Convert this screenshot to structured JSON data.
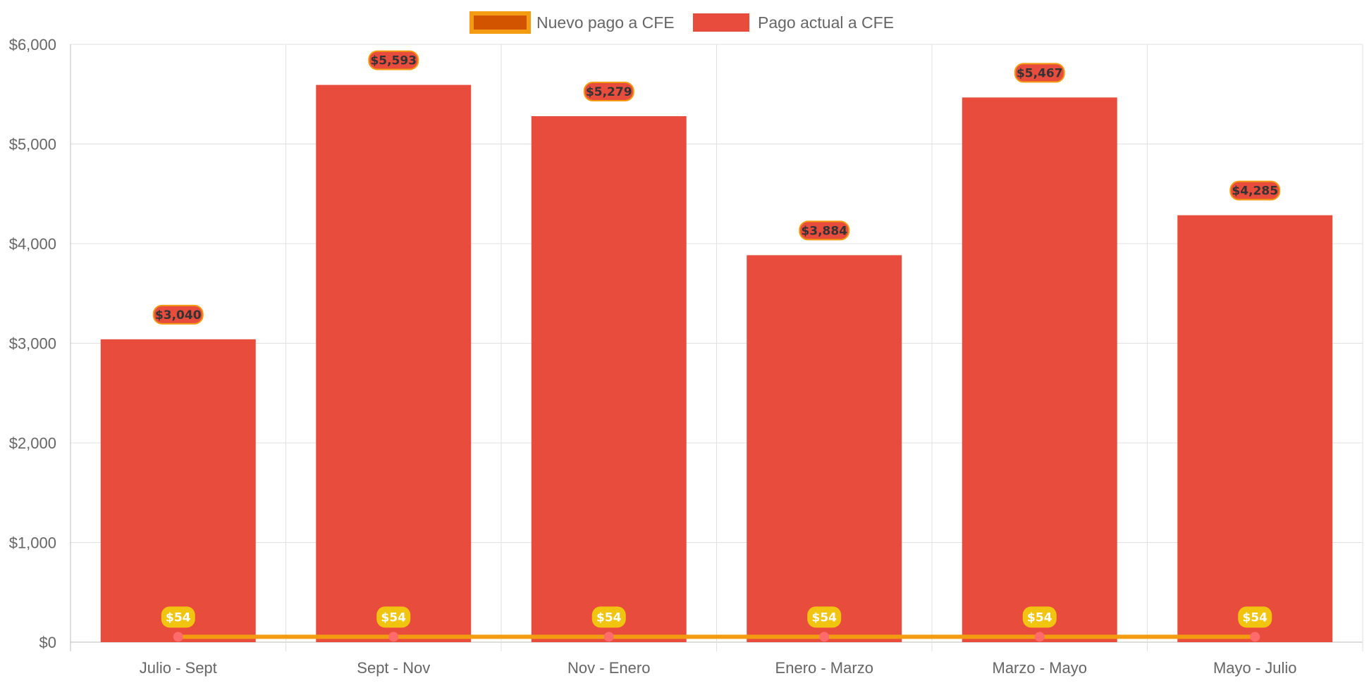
{
  "chart_data": {
    "type": "bar",
    "categories": [
      "Julio - Sept",
      "Sept - Nov",
      "Nov - Enero",
      "Enero - Marzo",
      "Marzo - Mayo",
      "Mayo - Julio"
    ],
    "series": [
      {
        "name": "Nuevo pago a CFE",
        "kind": "line",
        "color": "#f39c12",
        "point_color": "#ff6b6b",
        "values": [
          54,
          54,
          54,
          54,
          54,
          54
        ],
        "labels": [
          "$54",
          "$54",
          "$54",
          "$54",
          "$54",
          "$54"
        ],
        "label_background": "#f1c40f",
        "label_text_color": "#ffffff"
      },
      {
        "name": "Pago actual a CFE",
        "kind": "bar",
        "color": "#e74c3c",
        "values": [
          3040,
          5593,
          5279,
          3884,
          5467,
          4285
        ],
        "labels": [
          "$3,040",
          "$5,593",
          "$5,279",
          "$3,884",
          "$5,467",
          "$4,285"
        ],
        "label_background": "#e74c3c",
        "label_border": "#f39c12",
        "label_text_color": "#333333"
      }
    ],
    "y_ticks": [
      0,
      1000,
      2000,
      3000,
      4000,
      5000,
      6000
    ],
    "y_tick_labels": [
      "$0",
      "$1,000",
      "$2,000",
      "$3,000",
      "$4,000",
      "$5,000",
      "$6,000"
    ],
    "ylim": [
      0,
      6000
    ],
    "grid": true,
    "legend_position": "top-center",
    "title": "",
    "xlabel": "",
    "ylabel": ""
  }
}
